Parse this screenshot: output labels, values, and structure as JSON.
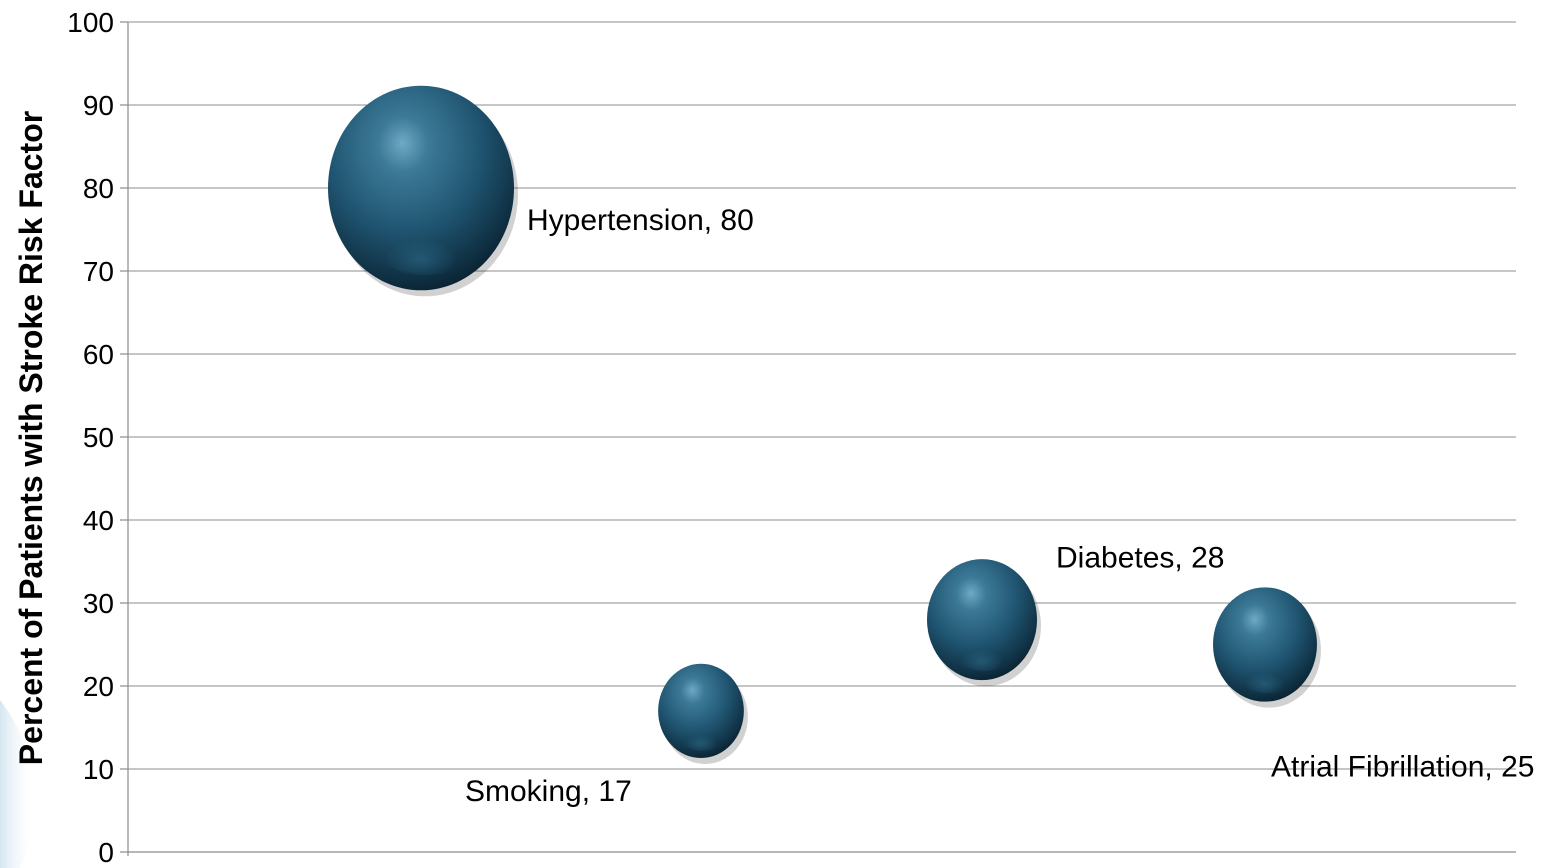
{
  "chart_data": {
    "type": "bubble",
    "title": "",
    "xlabel": "",
    "ylabel": "Percent of Patients with Stroke Risk Factor",
    "ylim": [
      0,
      100
    ],
    "yticks": [
      "0",
      "10",
      "20",
      "30",
      "40",
      "50",
      "60",
      "70",
      "80",
      "90",
      "100"
    ],
    "grid": true,
    "legend": "none",
    "bubble_color": "#1f5470",
    "points": [
      {
        "label": "Hypertension, 80",
        "x": 1,
        "y": 80,
        "size": 80
      },
      {
        "label": "Smoking, 17",
        "x": 2,
        "y": 17,
        "size": 17
      },
      {
        "label": "Diabetes, 28",
        "x": 3,
        "y": 28,
        "size": 28
      },
      {
        "label": "Atrial Fibrillation, 25",
        "x": 4,
        "y": 25,
        "size": 25
      }
    ]
  }
}
